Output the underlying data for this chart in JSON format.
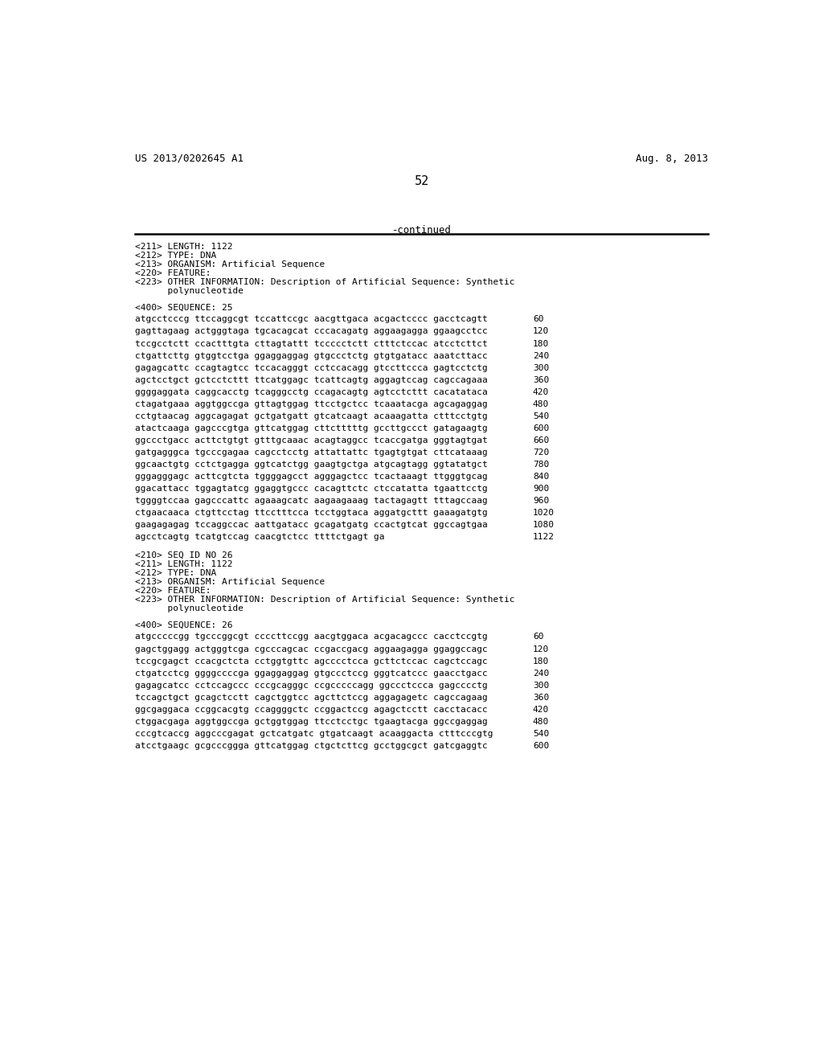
{
  "bg_color": "#ffffff",
  "header_left": "US 2013/0202645 A1",
  "header_right": "Aug. 8, 2013",
  "page_number": "52",
  "continued_text": "-continued",
  "metadata_lines": [
    "<211> LENGTH: 1122",
    "<212> TYPE: DNA",
    "<213> ORGANISM: Artificial Sequence",
    "<220> FEATURE:",
    "<223> OTHER INFORMATION: Description of Artificial Sequence: Synthetic",
    "      polynucleotide"
  ],
  "seq25_label": "<400> SEQUENCE: 25",
  "sequence25_lines": [
    [
      "atgcctcccg ttccaggcgt tccattccgc aacgttgaca acgactcccc gacctcagtt",
      "60"
    ],
    [
      "gagttagaag actgggtaga tgcacagcat cccacagatg aggaagagga ggaagcctcc",
      "120"
    ],
    [
      "tccgcctctt ccactttgta cttagtattt tccccctctt ctttctccac atcctcttct",
      "180"
    ],
    [
      "ctgattcttg gtggtcctga ggaggaggag gtgccctctg gtgtgatacc aaatcttacc",
      "240"
    ],
    [
      "gagagcattc ccagtagtcc tccacagggt cctccacagg gtccttccca gagtcctctg",
      "300"
    ],
    [
      "agctcctgct gctcctcttt ttcatggagc tcattcagtg aggagtccag cagccagaaa",
      "360"
    ],
    [
      "ggggaggata caggcacctg tcagggcctg ccagacagtg agtcctcttt cacatataca",
      "420"
    ],
    [
      "ctagatgaaa aggtggccga gttagtggag ttcctgctcc tcaaatacga agcagaggag",
      "480"
    ],
    [
      "cctgtaacag aggcagagat gctgatgatt gtcatcaagt acaaagatta ctttcctgtg",
      "540"
    ],
    [
      "atactcaaga gagcccgtga gttcatggag cttctttttg gccttgccct gatagaagtg",
      "600"
    ],
    [
      "ggccctgacc acttctgtgt gtttgcaaac acagtaggcc tcaccgatga gggtagtgat",
      "660"
    ],
    [
      "gatgagggca tgcccgagaa cagcctcctg attattattc tgagtgtgat cttcataaag",
      "720"
    ],
    [
      "ggcaactgtg cctctgagga ggtcatctgg gaagtgctga atgcagtagg ggtatatgct",
      "780"
    ],
    [
      "gggagggagc acttcgtcta tggggagcct agggagctcc tcactaaagt ttgggtgcag",
      "840"
    ],
    [
      "ggacattacc tggagtatcg ggaggtgccc cacagttctc ctccatatta tgaattcctg",
      "900"
    ],
    [
      "tggggtccaa gagcccattc agaaagcatc aagaagaaag tactagagtt tttagccaag",
      "960"
    ],
    [
      "ctgaacaaca ctgttcctag ttcctttcca tcctggtaca aggatgcttt gaaagatgtg",
      "1020"
    ],
    [
      "gaagagagag tccaggccac aattgatacc gcagatgatg ccactgtcat ggccagtgaa",
      "1080"
    ],
    [
      "agcctcagtg tcatgtccag caacgtctcc ttttctgagt ga",
      "1122"
    ]
  ],
  "seq26_metadata": [
    "<210> SEQ ID NO 26",
    "<211> LENGTH: 1122",
    "<212> TYPE: DNA",
    "<213> ORGANISM: Artificial Sequence",
    "<220> FEATURE:",
    "<223> OTHER INFORMATION: Description of Artificial Sequence: Synthetic",
    "      polynucleotide"
  ],
  "seq26_label": "<400> SEQUENCE: 26",
  "sequence26_lines": [
    [
      "atgcccccgg tgcccggcgt ccccttccgg aacgtggaca acgacagccc cacctccgtg",
      "60"
    ],
    [
      "gagctggagg actgggtcga cgcccagcac ccgaccgacg aggaagagga ggaggccagc",
      "120"
    ],
    [
      "tccgcgagct ccacgctcta cctggtgttc agcccctcca gcttctccac cagctccagc",
      "180"
    ],
    [
      "ctgatcctcg ggggccccga ggaggaggag gtgccctccg gggtcatccc gaacctgacc",
      "240"
    ],
    [
      "gagagcatcc cctccagccc cccgcagggc ccgcccccagg ggccctccca gagcccctg",
      "300"
    ],
    [
      "tccagctgct gcagctcctt cagctggtcc agcttctccg aggagagetc cagccagaag",
      "360"
    ],
    [
      "ggcgaggaca ccggcacgtg ccaggggctc ccggactccg agagctcctt cacctacacc",
      "420"
    ],
    [
      "ctggacgaga aggtggccga gctggtggag ttcctcctgc tgaagtacga ggccgaggag",
      "480"
    ],
    [
      "cccgtcaccg aggcccgagat gctcatgatc gtgatcaagt acaaggacta ctttcccgtg",
      "540"
    ],
    [
      "atcctgaagc gcgcccggga gttcatggag ctgctcttcg gcctggcgct gatcgaggtc",
      "600"
    ]
  ]
}
